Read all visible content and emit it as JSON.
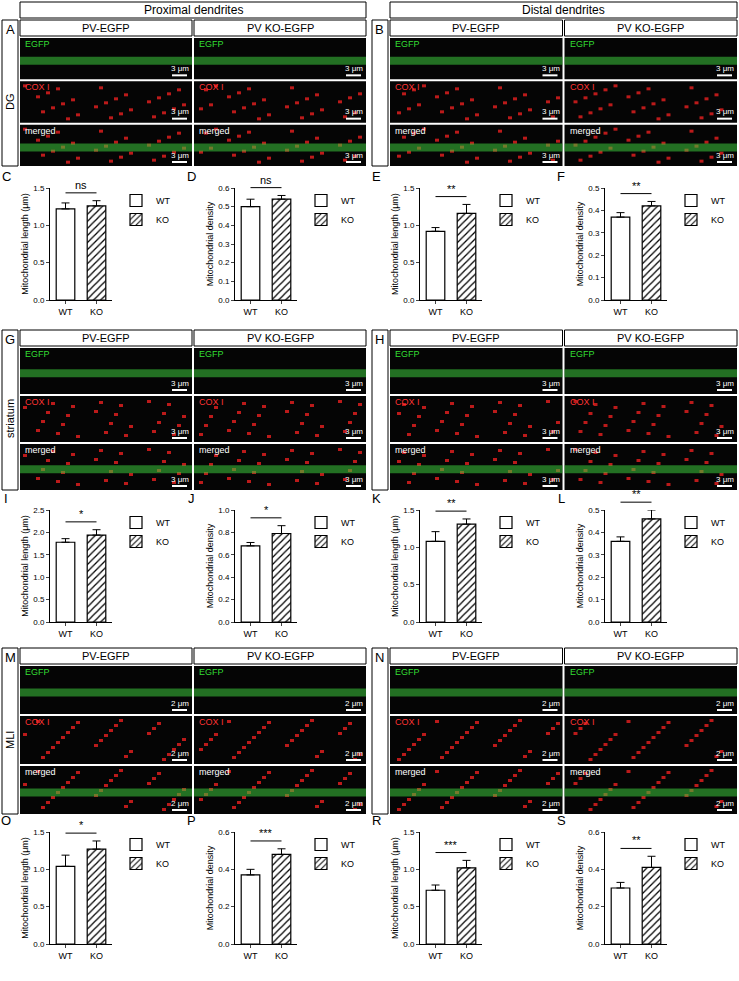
{
  "headers": [
    "Proximal dendrites",
    "Distal dendrites"
  ],
  "image_rows": [
    {
      "region": "DG",
      "channels": [
        "EGFP",
        "COX I",
        "merged"
      ],
      "scale_bar": "3 μm",
      "panels": [
        {
          "label": "A",
          "columns": [
            "PV-EGFP",
            "PV KO-EGFP"
          ]
        },
        {
          "label": "B",
          "columns": [
            "PV-EGFP",
            "PV KO-EGFP"
          ]
        }
      ]
    },
    {
      "region": "striatum",
      "channels": [
        "EGFP",
        "COX I",
        "merged"
      ],
      "scale_bar": "3 μm",
      "panels": [
        {
          "label": "G",
          "columns": [
            "PV-EGFP",
            "PV KO-EGFP"
          ]
        },
        {
          "label": "H",
          "columns": [
            "PV-EGFP",
            "PV KO-EGFP"
          ]
        }
      ]
    },
    {
      "region": "MLI",
      "channels": [
        "EGFP",
        "COX I",
        "merged"
      ],
      "scale_bar": "2 μm",
      "panels": [
        {
          "label": "M",
          "columns": [
            "PV-EGFP",
            "PV KO-EGFP"
          ]
        },
        {
          "label": "N",
          "columns": [
            "PV-EGFP",
            "PV KO-EGFP"
          ]
        }
      ]
    }
  ],
  "chart_data": [
    {
      "type": "bar",
      "panel_label": "C",
      "categories": [
        "WT",
        "KO"
      ],
      "values": [
        1.22,
        1.26
      ],
      "errors": [
        0.08,
        0.07
      ],
      "colors": [
        "#ffffff",
        "#ffffff"
      ],
      "ylabel": "Mitochondrial length (μm)",
      "ylim": [
        0,
        1.5
      ],
      "yticks": [
        {
          "value": 0,
          "label": "0.0"
        },
        0.5,
        {
          "value": 1,
          "label": "1.0"
        },
        1.5
      ],
      "annotation": "ns",
      "legend": "upper right"
    },
    {
      "type": "bar",
      "panel_label": "D",
      "categories": [
        "WT",
        "KO"
      ],
      "values": [
        0.5,
        0.54
      ],
      "errors": [
        0.04,
        0.02
      ],
      "colors": [
        "#ffffff",
        "#ffffff"
      ],
      "ylabel": "Mitochondrial density",
      "ylim": [
        0,
        0.6
      ],
      "yticks": [
        {
          "value": 0,
          "label": "0.0"
        },
        0.1,
        0.2,
        0.3,
        0.4,
        0.5,
        0.6
      ],
      "annotation": "ns",
      "legend": "upper right"
    },
    {
      "type": "bar",
      "panel_label": "E",
      "categories": [
        "WT",
        "KO"
      ],
      "values": [
        0.92,
        1.16
      ],
      "errors": [
        0.05,
        0.12
      ],
      "colors": [
        "#ffffff",
        "#ffffff"
      ],
      "ylabel": "Mitochondrial length (μm)",
      "ylim": [
        0,
        1.5
      ],
      "yticks": [
        {
          "value": 0,
          "label": "0.0"
        },
        0.5,
        {
          "value": 1,
          "label": "1.0"
        },
        1.5
      ],
      "annotation": "**",
      "legend": "upper right"
    },
    {
      "type": "bar",
      "panel_label": "F",
      "categories": [
        "WT",
        "KO"
      ],
      "values": [
        0.37,
        0.42
      ],
      "errors": [
        0.02,
        0.02
      ],
      "colors": [
        "#ffffff",
        "#ffffff"
      ],
      "ylabel": "Mitochondrial density",
      "ylim": [
        0,
        0.5
      ],
      "yticks": [
        {
          "value": 0,
          "label": "0.0"
        },
        0.1,
        0.2,
        0.3,
        0.4,
        0.5
      ],
      "annotation": "**",
      "legend": "upper right"
    },
    {
      "type": "bar",
      "panel_label": "I",
      "categories": [
        "WT",
        "KO"
      ],
      "values": [
        1.78,
        1.94
      ],
      "errors": [
        0.08,
        0.12
      ],
      "colors": [
        "#ffffff",
        "#ffffff"
      ],
      "ylabel": "Mitochondrial length (μm)",
      "ylim": [
        0,
        2.5
      ],
      "yticks": [
        {
          "value": 0,
          "label": "0.0"
        },
        0.5,
        {
          "value": 1,
          "label": "1.0"
        },
        1.5,
        {
          "value": 2,
          "label": "2.0"
        },
        2.5
      ],
      "annotation": "*",
      "legend": "upper right"
    },
    {
      "type": "bar",
      "panel_label": "J",
      "categories": [
        "WT",
        "KO"
      ],
      "values": [
        0.68,
        0.79
      ],
      "errors": [
        0.03,
        0.07
      ],
      "colors": [
        "#ffffff",
        "#ffffff"
      ],
      "ylabel": "Mitochondrial density",
      "ylim": [
        0,
        1
      ],
      "yticks": [
        {
          "value": 0,
          "label": "0.0"
        },
        0.2,
        0.4,
        0.6,
        0.8,
        {
          "value": 1,
          "label": "1.0"
        }
      ],
      "annotation": "*",
      "legend": "upper right"
    },
    {
      "type": "bar",
      "panel_label": "K",
      "categories": [
        "WT",
        "KO"
      ],
      "values": [
        1.08,
        1.31
      ],
      "errors": [
        0.13,
        0.07
      ],
      "colors": [
        "#ffffff",
        "#ffffff"
      ],
      "ylabel": "Mitochondrial length (μm)",
      "ylim": [
        0,
        1.5
      ],
      "yticks": [
        {
          "value": 0,
          "label": "0.0"
        },
        0.5,
        {
          "value": 1,
          "label": "1.0"
        },
        1.5
      ],
      "annotation": "**",
      "legend": "upper right"
    },
    {
      "type": "bar",
      "panel_label": "L",
      "categories": [
        "WT",
        "KO"
      ],
      "values": [
        0.36,
        0.46
      ],
      "errors": [
        0.02,
        0.04
      ],
      "colors": [
        "#ffffff",
        "#ffffff"
      ],
      "ylabel": "Mitochondrial density",
      "ylim": [
        0,
        0.5
      ],
      "yticks": [
        {
          "value": 0,
          "label": "0.0"
        },
        0.1,
        0.2,
        0.3,
        0.4,
        0.5
      ],
      "annotation": "**",
      "legend": "upper right"
    },
    {
      "type": "bar",
      "panel_label": "O",
      "categories": [
        "WT",
        "KO"
      ],
      "values": [
        1.04,
        1.27
      ],
      "errors": [
        0.15,
        0.11
      ],
      "colors": [
        "#ffffff",
        "#ffffff"
      ],
      "ylabel": "Mitochondrial length (μm)",
      "ylim": [
        0,
        1.5
      ],
      "yticks": [
        {
          "value": 0,
          "label": "0.0"
        },
        0.5,
        {
          "value": 1,
          "label": "1.0"
        },
        1.5
      ],
      "annotation": "*",
      "legend": "upper right"
    },
    {
      "type": "bar",
      "panel_label": "P",
      "categories": [
        "WT",
        "KO"
      ],
      "values": [
        0.37,
        0.48
      ],
      "errors": [
        0.03,
        0.03
      ],
      "colors": [
        "#ffffff",
        "#ffffff"
      ],
      "ylabel": "Mitochondrial density",
      "ylim": [
        0,
        0.6
      ],
      "yticks": [
        {
          "value": 0,
          "label": "0.0"
        },
        0.2,
        0.4,
        0.6
      ],
      "annotation": "***",
      "legend": "upper right"
    },
    {
      "type": "bar",
      "panel_label": "R",
      "categories": [
        "WT",
        "KO"
      ],
      "values": [
        0.72,
        1.02
      ],
      "errors": [
        0.07,
        0.1
      ],
      "colors": [
        "#ffffff",
        "#ffffff"
      ],
      "ylabel": "Mitochondrial length (μm)",
      "ylim": [
        0,
        1.5
      ],
      "yticks": [
        {
          "value": 0,
          "label": "0.0"
        },
        0.5,
        {
          "value": 1,
          "label": "1.0"
        },
        1.5
      ],
      "annotation": "***",
      "legend": "upper right"
    },
    {
      "type": "bar",
      "panel_label": "S",
      "categories": [
        "WT",
        "KO"
      ],
      "values": [
        0.3,
        0.41
      ],
      "errors": [
        0.03,
        0.06
      ],
      "colors": [
        "#ffffff",
        "#ffffff"
      ],
      "ylabel": "Mitochondrial density",
      "ylim": [
        0,
        0.6
      ],
      "yticks": [
        {
          "value": 0,
          "label": "0.0"
        },
        0.2,
        0.4,
        0.6
      ],
      "annotation": "**",
      "legend": "upper right"
    }
  ]
}
